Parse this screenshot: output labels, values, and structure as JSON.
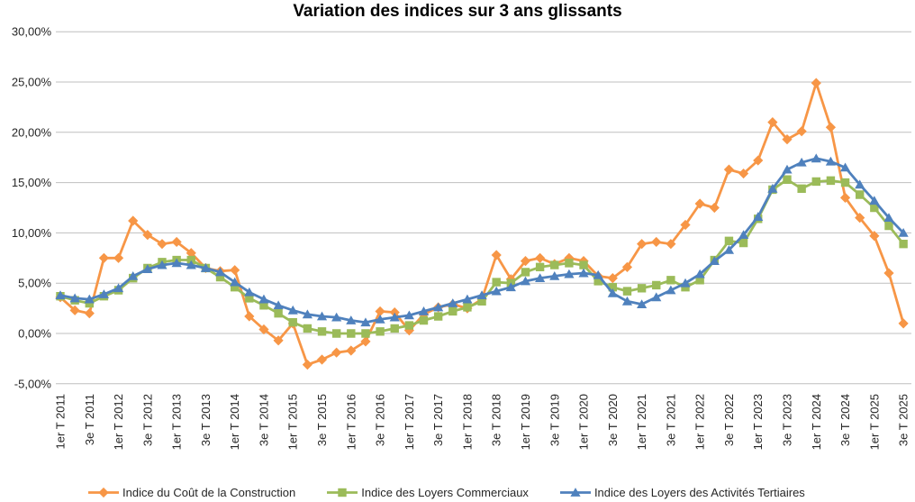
{
  "title": "Variation des indices sur 3 ans glissants",
  "y_axis": {
    "tick_labels": [
      "30,00%",
      "25,00%",
      "20,00%",
      "15,00%",
      "10,00%",
      "5,00%",
      "0,00%",
      "-5,00%"
    ],
    "tick_values": [
      30,
      25,
      20,
      15,
      10,
      5,
      0,
      -5
    ],
    "format": "percent-fr"
  },
  "x_axis": {
    "tick_labels": [
      "1er T 2011",
      "3e T 2011",
      "1er T 2012",
      "3e T 2012",
      "1er T 2013",
      "3e T 2013",
      "1er T 2014",
      "3e T 2014",
      "1er T 2015",
      "3e T 2015",
      "1er T 2016",
      "3e T 2016",
      "1er T 2017",
      "3e T 2017",
      "1er T 2018",
      "3e T 2018",
      "1er T 2019",
      "3e T 2019",
      "1er T 2020",
      "3e T 2020",
      "1er T 2021",
      "3e T 2021",
      "1er T 2022",
      "3e T 2022",
      "1er T 2023",
      "3e T 2023",
      "1er T 2024",
      "3e T 2024",
      "1er T 2025",
      "3e T 2025"
    ],
    "points_per_tick": 2,
    "label_rotation_deg": -90
  },
  "chart_data": {
    "type": "line",
    "title": "Variation des indices sur 3 ans glissants",
    "xlabel": "",
    "ylabel": "",
    "ylim": [
      -5,
      30
    ],
    "y_step": 5,
    "grid": true,
    "legend_position": "bottom",
    "x_quarters_start": "1er T 2011",
    "x_quarters_end": "3e T 2025",
    "n_points": 59,
    "series": [
      {
        "name": "Indice du Coût de la Construction",
        "color": "#F79646",
        "marker": "diamond",
        "values": [
          3.6,
          2.3,
          2.0,
          7.5,
          7.5,
          11.2,
          9.8,
          8.9,
          9.1,
          8.0,
          6.5,
          6.2,
          6.3,
          1.7,
          0.4,
          -0.7,
          1.0,
          -3.1,
          -2.6,
          -1.9,
          -1.7,
          -0.8,
          2.2,
          2.1,
          0.3,
          1.9,
          2.6,
          2.9,
          2.5,
          3.4,
          7.8,
          5.4,
          7.2,
          7.5,
          6.9,
          7.5,
          7.2,
          5.7,
          5.5,
          6.6,
          8.9,
          9.1,
          8.9,
          10.8,
          12.9,
          12.5,
          16.3,
          15.9,
          17.2,
          21.0,
          19.3,
          20.1,
          24.9,
          20.5,
          13.5,
          11.5,
          9.7,
          6.0,
          1.0
        ]
      },
      {
        "name": "Indice des Loyers Commerciaux",
        "color": "#9BBB59",
        "marker": "square",
        "values": [
          3.7,
          3.3,
          3.0,
          3.7,
          4.3,
          5.5,
          6.5,
          7.1,
          7.3,
          7.3,
          6.5,
          5.6,
          4.6,
          3.5,
          2.8,
          2.0,
          1.1,
          0.5,
          0.2,
          0.0,
          0.0,
          0.0,
          0.2,
          0.5,
          0.8,
          1.3,
          1.7,
          2.2,
          2.6,
          3.2,
          5.1,
          5.0,
          6.1,
          6.6,
          6.8,
          7.0,
          6.8,
          5.2,
          4.6,
          4.2,
          4.5,
          4.8,
          5.3,
          4.6,
          5.3,
          7.3,
          9.2,
          9.0,
          11.4,
          14.3,
          15.3,
          14.4,
          15.1,
          15.2,
          15.0,
          13.8,
          12.5,
          10.7,
          8.9
        ]
      },
      {
        "name": "Indice des Loyers des Activités Tertiaires",
        "color": "#4F81BD",
        "marker": "triangle",
        "values": [
          3.8,
          3.5,
          3.4,
          3.9,
          4.5,
          5.7,
          6.4,
          6.8,
          7.0,
          6.8,
          6.5,
          6.1,
          5.1,
          4.1,
          3.4,
          2.8,
          2.3,
          1.9,
          1.7,
          1.6,
          1.3,
          1.1,
          1.4,
          1.6,
          1.8,
          2.2,
          2.6,
          3.0,
          3.4,
          3.8,
          4.2,
          4.6,
          5.2,
          5.5,
          5.7,
          5.9,
          6.0,
          5.8,
          4.0,
          3.2,
          2.9,
          3.6,
          4.3,
          5.0,
          5.9,
          7.2,
          8.3,
          9.8,
          11.6,
          14.4,
          16.3,
          17.0,
          17.4,
          17.1,
          16.5,
          14.8,
          13.2,
          11.5,
          10.0
        ]
      }
    ],
    "gridline_color": "#BFBFBF",
    "text_color": "#262626"
  }
}
